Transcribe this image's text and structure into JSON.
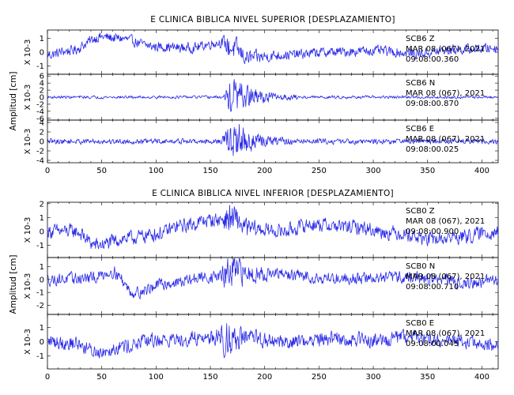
{
  "chart_data": [
    {
      "type": "line",
      "title": "E CLINICA BIBLICA NIVEL SUPERIOR [DESPLAZAMIENTO]",
      "ylabel": "Amplitud [cm]",
      "xlim": [
        0,
        415
      ],
      "xticks": [
        0,
        50,
        100,
        150,
        200,
        250,
        300,
        350,
        400
      ],
      "x_range_data": [
        0,
        415
      ],
      "series": [
        {
          "name": "SCB6   Z",
          "date": "MAR 08 (067), 2021",
          "time": "09:08:00.360",
          "scale": "X 10-3",
          "ylim": [
            -1.6,
            1.6
          ],
          "yticks": [
            "1",
            "0",
            "-1"
          ],
          "ytick_values": [
            1,
            0,
            -1
          ],
          "envelope": {
            "x": [
              0,
              20,
              50,
              65,
              100,
              130,
              160,
              170,
              185,
              220,
              260,
              300,
              340,
              380,
              415
            ],
            "y": [
              -0.2,
              0.1,
              1.1,
              1.0,
              0.4,
              0.3,
              0.7,
              0.3,
              -0.4,
              -0.2,
              0.0,
              0.1,
              -0.1,
              0.2,
              0.3
            ]
          },
          "noise_amp": 0.35,
          "burst": {
            "start": 160,
            "peak": 168,
            "end": 215,
            "amp": 0.6
          }
        },
        {
          "name": "SCB6   N",
          "date": "MAR 08 (067), 2021",
          "time": "09:08:00.870",
          "scale": "X 10-3",
          "ylim": [
            -6.5,
            6.5
          ],
          "yticks": [
            "6",
            "4",
            "2",
            "0",
            "-2",
            "-4",
            "-6"
          ],
          "ytick_values": [
            6,
            4,
            2,
            0,
            -2,
            -4,
            -6
          ],
          "envelope": {
            "x": [
              0,
              415
            ],
            "y": [
              0,
              0
            ]
          },
          "noise_amp": 0.4,
          "burst": {
            "start": 162,
            "peak": 170,
            "end": 230,
            "amp": 5.5
          }
        },
        {
          "name": "SCB6   E",
          "date": "MAR 08 (067), 2021",
          "time": "09:08:00.025",
          "scale": "X 10-3",
          "ylim": [
            -4.5,
            4.5
          ],
          "yticks": [
            "4",
            "2",
            "0",
            "-2",
            "-4"
          ],
          "ytick_values": [
            4,
            2,
            0,
            -2,
            -4
          ],
          "envelope": {
            "x": [
              0,
              415
            ],
            "y": [
              0,
              0
            ]
          },
          "noise_amp": 0.55,
          "burst": {
            "start": 160,
            "peak": 171,
            "end": 225,
            "amp": 4.2
          }
        }
      ]
    },
    {
      "type": "line",
      "title": "E CLINICA BIBLICA NIVEL INFERIOR [DESPLAZAMIENTO]",
      "ylabel": "Amplitud [cm]",
      "xlim": [
        0,
        415
      ],
      "xticks": [
        0,
        50,
        100,
        150,
        200,
        250,
        300,
        350,
        400
      ],
      "x_range_data": [
        0,
        415
      ],
      "series": [
        {
          "name": "SCB0   Z",
          "date": "MAR 08 (067), 2021",
          "time": "09:08:00.900",
          "scale": "X 10-3",
          "ylim": [
            -1.9,
            2.1
          ],
          "yticks": [
            "2",
            "1",
            "0",
            "-1"
          ],
          "ytick_values": [
            2,
            1,
            0,
            -1
          ],
          "envelope": {
            "x": [
              0,
              25,
              45,
              75,
              100,
              125,
              150,
              170,
              185,
              215,
              245,
              280,
              320,
              355,
              380,
              415
            ],
            "y": [
              0.0,
              0.0,
              -1.0,
              -0.5,
              -0.2,
              0.4,
              0.8,
              0.9,
              0.2,
              0.0,
              0.5,
              0.3,
              -0.1,
              -0.6,
              -0.4,
              0.0
            ]
          },
          "noise_amp": 0.5,
          "burst": {
            "start": 160,
            "peak": 168,
            "end": 200,
            "amp": 0.7
          }
        },
        {
          "name": "SCB0   N",
          "date": "MAR 08 (067), 2021",
          "time": "09:08:00.710",
          "scale": "X 10-3",
          "ylim": [
            -2.7,
            1.7
          ],
          "yticks": [
            "1",
            "0",
            "-1",
            "-2"
          ],
          "ytick_values": [
            1,
            0,
            -1,
            -2
          ],
          "envelope": {
            "x": [
              0,
              40,
              60,
              80,
              110,
              150,
              180,
              210,
              260,
              300,
              330,
              360,
              390,
              415
            ],
            "y": [
              0.0,
              0.1,
              0.6,
              -1.0,
              -0.3,
              0.2,
              0.5,
              0.4,
              0.1,
              0.1,
              0.2,
              0.0,
              -0.3,
              0.0
            ]
          },
          "noise_amp": 0.45,
          "burst": {
            "start": 160,
            "peak": 168,
            "end": 205,
            "amp": 1.3
          }
        },
        {
          "name": "SCB0   E",
          "date": "MAR 08 (067), 2021",
          "time": "09:08:00.045",
          "scale": "X 10-3",
          "ylim": [
            -1.9,
            1.9
          ],
          "yticks": [
            "1",
            "0",
            "-1"
          ],
          "ytick_values": [
            1,
            0,
            -1
          ],
          "envelope": {
            "x": [
              0,
              25,
              45,
              70,
              100,
              150,
              180,
              220,
              260,
              300,
              340,
              380,
              415
            ],
            "y": [
              0.0,
              -0.1,
              -0.7,
              -0.3,
              0.1,
              0.3,
              0.2,
              0.0,
              0.2,
              0.1,
              0.3,
              0.0,
              -0.4
            ]
          },
          "noise_amp": 0.5,
          "burst": {
            "start": 155,
            "peak": 165,
            "end": 200,
            "amp": 0.8
          }
        }
      ]
    }
  ]
}
